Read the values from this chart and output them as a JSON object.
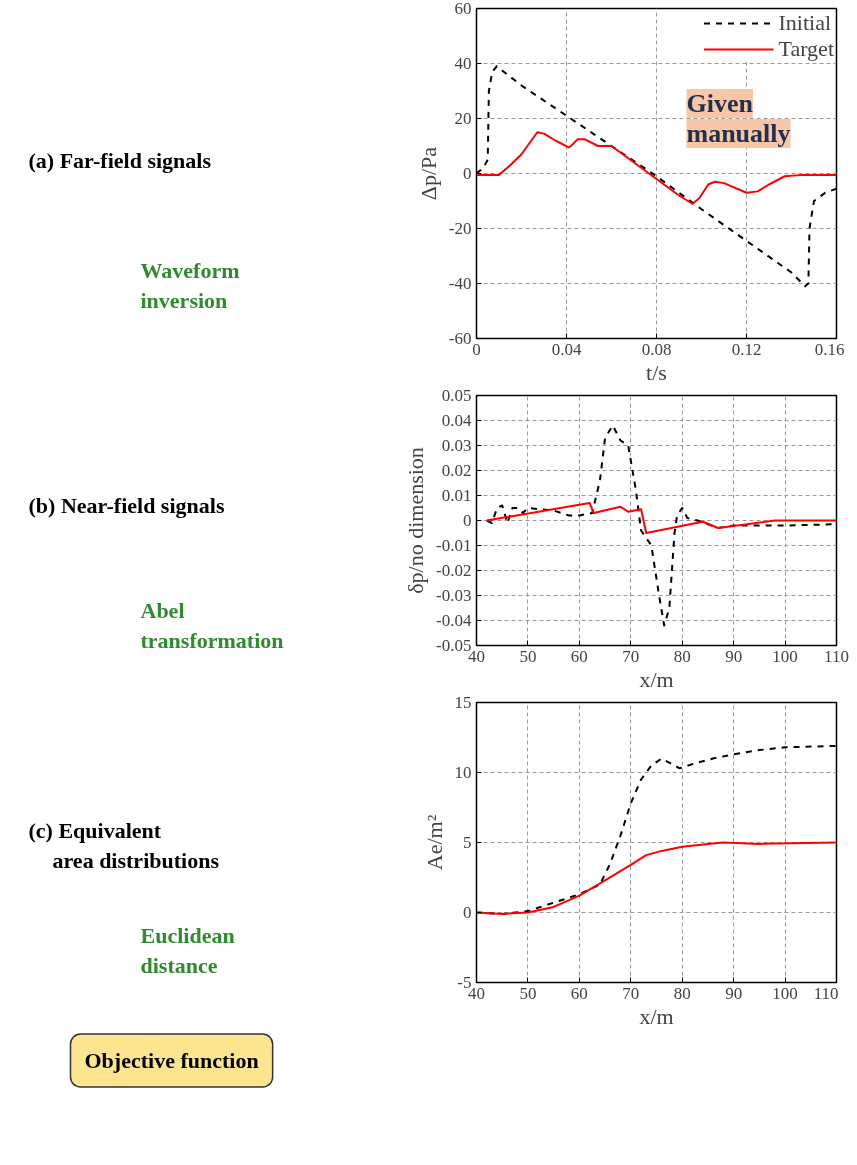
{
  "chart_data": [
    {
      "type": "other",
      "annotations": [
        "(a) Far-field signals",
        "Waveform inversion",
        "(b) Near-field signals",
        "Abel transformation",
        "(c) Equivalent area distributions",
        "Euclidean distance",
        "Objective function"
      ]
    },
    {
      "type": "line",
      "xlabel": "t/s",
      "ylabel": "Δp/Pa",
      "xlim": [
        0,
        0.16
      ],
      "ylim": [
        -60,
        60
      ],
      "xticks": [
        0,
        0.04,
        0.08,
        0.12,
        0.16
      ],
      "yticks": [
        -60,
        -40,
        -20,
        0,
        20,
        40,
        60
      ],
      "grid": true,
      "legend": "top right",
      "annotations": [
        "Given manually"
      ],
      "series": [
        {
          "name": "Initial",
          "color": "#000000",
          "line_style": "dashed",
          "x": [
            0,
            0.003,
            0.005,
            0.0055,
            0.007,
            0.009,
            0.02,
            0.04,
            0.06,
            0.08,
            0.1,
            0.12,
            0.14,
            0.146,
            0.1475,
            0.148,
            0.15,
            0.155,
            0.16
          ],
          "values": [
            0,
            2,
            5,
            30,
            37,
            39,
            32,
            21,
            10,
            -1,
            -13,
            -24.5,
            -36,
            -41,
            -40,
            -20,
            -10,
            -7,
            -5.5
          ]
        },
        {
          "name": "Target",
          "color": "#ff0000",
          "line_style": "solid",
          "x": [
            0,
            0.01,
            0.015,
            0.02,
            0.027,
            0.03,
            0.035,
            0.041,
            0.042,
            0.045,
            0.048,
            0.054,
            0.06,
            0.07,
            0.08,
            0.09,
            0.096,
            0.099,
            0.103,
            0.106,
            0.11,
            0.12,
            0.125,
            0.13,
            0.137,
            0.145,
            0.16
          ],
          "values": [
            -0.5,
            -0.5,
            3,
            7,
            15,
            14.5,
            12,
            9.5,
            10,
            12.5,
            12.5,
            10,
            10,
            4,
            -2,
            -8,
            -11,
            -9,
            -4,
            -3,
            -3.5,
            -7,
            -6.5,
            -4,
            -1,
            -0.5,
            -0.5
          ]
        }
      ]
    },
    {
      "type": "line",
      "xlabel": "x/m",
      "ylabel": "δp/no dimension",
      "xlim": [
        40,
        110
      ],
      "ylim": [
        -0.05,
        0.05
      ],
      "xticks": [
        40,
        50,
        60,
        70,
        80,
        90,
        100,
        110
      ],
      "yticks": [
        -0.05,
        -0.04,
        -0.03,
        -0.02,
        -0.01,
        0,
        0.01,
        0.02,
        0.03,
        0.04,
        0.05
      ],
      "grid": true,
      "series": [
        {
          "color": "#000000",
          "line_style": "dashed",
          "x": [
            42,
            43,
            44,
            45,
            46,
            47,
            48,
            49,
            50,
            55,
            58,
            60,
            62.5,
            64,
            65,
            66.5,
            68,
            69.5,
            71,
            72,
            74,
            75.5,
            76.5,
            77.5,
            78.5,
            79,
            80,
            81,
            83,
            87,
            90,
            95,
            100,
            110
          ],
          "values": [
            0,
            -0.001,
            0.005,
            0.006,
            -0.001,
            0.005,
            0.005,
            0.003,
            0.005,
            0.004,
            0.002,
            0.002,
            0.003,
            0.016,
            0.033,
            0.038,
            0.032,
            0.03,
            0.012,
            -0.004,
            -0.01,
            -0.03,
            -0.042,
            -0.035,
            -0.005,
            0.002,
            0.005,
            0.001,
            0,
            -0.003,
            -0.002,
            -0.002,
            -0.002,
            -0.0015
          ]
        },
        {
          "color": "#ff0000",
          "line_style": "solid",
          "x": [
            42,
            62,
            62.8,
            68,
            69.5,
            72,
            73,
            84,
            87,
            98,
            110
          ],
          "values": [
            0,
            0.007,
            0.003,
            0.0055,
            0.0035,
            0.0045,
            -0.005,
            -0.0005,
            -0.003,
            0,
            0
          ]
        }
      ]
    },
    {
      "type": "line",
      "xlabel": "x/m",
      "ylabel": "Ae/m²",
      "xlim": [
        40,
        110
      ],
      "ylim": [
        -5,
        15
      ],
      "xticks": [
        40,
        50,
        60,
        70,
        80,
        90,
        100,
        110
      ],
      "yticks": [
        -5,
        0,
        5,
        10,
        15
      ],
      "grid": true,
      "series": [
        {
          "color": "#000000",
          "line_style": "dashed",
          "x": [
            40,
            45,
            50,
            55,
            60,
            64,
            66,
            68,
            70,
            72,
            74,
            76,
            78,
            79.5,
            82,
            86,
            90,
            95,
            100,
            110
          ],
          "values": [
            0,
            -0.1,
            0.1,
            0.7,
            1.3,
            2.0,
            3.5,
            5.5,
            7.8,
            9.5,
            10.5,
            11.0,
            10.6,
            10.3,
            10.6,
            11.0,
            11.3,
            11.6,
            11.8,
            11.9
          ]
        },
        {
          "color": "#ff0000",
          "line_style": "solid",
          "x": [
            40,
            45,
            50,
            55,
            60,
            65,
            70,
            73,
            76,
            80,
            85,
            88,
            95,
            110
          ],
          "values": [
            0,
            -0.1,
            0,
            0.4,
            1.2,
            2.3,
            3.4,
            4.1,
            4.4,
            4.7,
            4.9,
            5.0,
            4.9,
            5.0
          ]
        }
      ]
    }
  ]
}
